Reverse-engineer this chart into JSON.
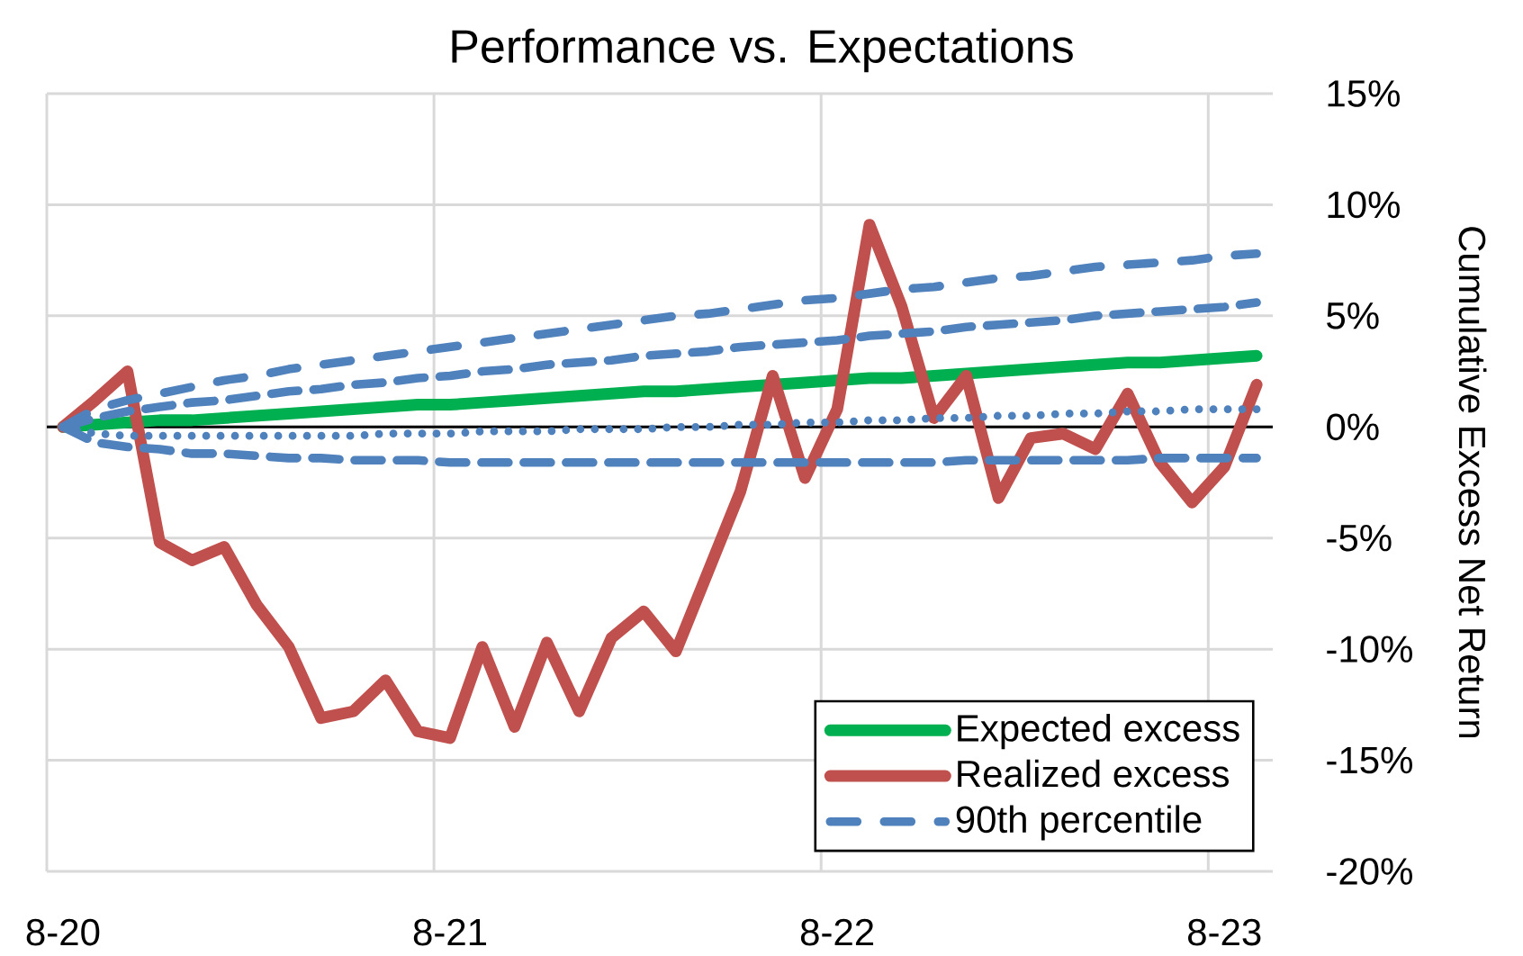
{
  "chart_data": {
    "type": "line",
    "title": "Performance vs. Expectations",
    "ylabel": "Cumulative Excess Net Return",
    "categories": [
      "8-20",
      null,
      null,
      null,
      null,
      null,
      null,
      null,
      null,
      null,
      null,
      null,
      "8-21",
      null,
      null,
      null,
      null,
      null,
      null,
      null,
      null,
      null,
      null,
      null,
      "8-22",
      null,
      null,
      null,
      null,
      null,
      null,
      null,
      null,
      null,
      null,
      null,
      "8-23",
      null
    ],
    "series": [
      {
        "name": "Expected excess",
        "color": "#00b050",
        "line_style": "solid",
        "values": [
          0,
          0.1,
          0.2,
          0.3,
          0.3,
          0.4,
          0.5,
          0.6,
          0.7,
          0.8,
          0.9,
          1.0,
          1.0,
          1.1,
          1.2,
          1.3,
          1.4,
          1.5,
          1.6,
          1.6,
          1.7,
          1.8,
          1.9,
          2.0,
          2.1,
          2.2,
          2.2,
          2.3,
          2.4,
          2.5,
          2.6,
          2.7,
          2.8,
          2.9,
          2.9,
          3.0,
          3.1,
          3.2
        ]
      },
      {
        "name": "Realized excess",
        "color": "#c0504d",
        "line_style": "solid",
        "values": [
          0,
          1.2,
          2.5,
          -5.2,
          -6.0,
          -5.4,
          -8.0,
          -9.9,
          -13.1,
          -12.8,
          -11.4,
          -13.7,
          -14.0,
          -9.9,
          -13.5,
          -9.7,
          -12.8,
          -9.5,
          -8.3,
          -10.1,
          -6.5,
          -2.9,
          2.3,
          -2.3,
          0.8,
          9.1,
          5.4,
          0.4,
          2.3,
          -3.2,
          -0.5,
          -0.3,
          -1.0,
          1.5,
          -1.6,
          -3.4,
          -1.8,
          1.9
        ]
      },
      {
        "name": "90th percentile",
        "color": "#4f81bd",
        "line_style": "dashdot",
        "values": [
          0,
          0.8,
          1.2,
          1.5,
          1.8,
          2.1,
          2.3,
          2.6,
          2.8,
          3.0,
          3.2,
          3.4,
          3.6,
          3.8,
          4.0,
          4.2,
          4.4,
          4.6,
          4.8,
          5.0,
          5.1,
          5.3,
          5.5,
          5.7,
          5.8,
          6.0,
          6.2,
          6.3,
          6.5,
          6.7,
          6.8,
          7.0,
          7.2,
          7.3,
          7.4,
          7.5,
          7.7,
          7.8
        ]
      },
      {
        "color": "#4f81bd",
        "line_style": "dashed",
        "values": [
          0,
          0.4,
          0.7,
          0.9,
          1.1,
          1.2,
          1.4,
          1.6,
          1.7,
          1.9,
          2.0,
          2.2,
          2.3,
          2.5,
          2.6,
          2.8,
          2.9,
          3.0,
          3.2,
          3.3,
          3.4,
          3.6,
          3.7,
          3.8,
          3.9,
          4.1,
          4.2,
          4.3,
          4.5,
          4.6,
          4.7,
          4.8,
          5.0,
          5.1,
          5.2,
          5.3,
          5.4,
          5.6
        ]
      },
      {
        "color": "#4f81bd",
        "line_style": "dotted",
        "values": [
          0,
          -0.3,
          -0.4,
          -0.4,
          -0.4,
          -0.4,
          -0.4,
          -0.4,
          -0.4,
          -0.4,
          -0.3,
          -0.3,
          -0.3,
          -0.2,
          -0.2,
          -0.2,
          -0.1,
          -0.1,
          -0.1,
          0.0,
          0.0,
          0.1,
          0.1,
          0.2,
          0.2,
          0.3,
          0.3,
          0.4,
          0.4,
          0.5,
          0.5,
          0.6,
          0.6,
          0.7,
          0.7,
          0.8,
          0.8,
          0.8
        ]
      },
      {
        "color": "#4f81bd",
        "line_style": "dashed",
        "values": [
          0,
          -0.7,
          -0.9,
          -1.0,
          -1.2,
          -1.2,
          -1.3,
          -1.4,
          -1.4,
          -1.5,
          -1.5,
          -1.5,
          -1.6,
          -1.6,
          -1.6,
          -1.6,
          -1.6,
          -1.6,
          -1.6,
          -1.6,
          -1.6,
          -1.6,
          -1.6,
          -1.6,
          -1.6,
          -1.6,
          -1.6,
          -1.6,
          -1.5,
          -1.5,
          -1.5,
          -1.5,
          -1.5,
          -1.5,
          -1.4,
          -1.4,
          -1.4,
          -1.4
        ]
      }
    ],
    "ylim": [
      -20,
      15
    ],
    "yticks": [
      {
        "value": -20,
        "label": "-20%"
      },
      {
        "value": -15,
        "label": "-15%"
      },
      {
        "value": -10,
        "label": "-10%"
      },
      {
        "value": -5,
        "label": "-5%"
      },
      {
        "value": 0,
        "label": "0%"
      },
      {
        "value": 5,
        "label": "5%"
      },
      {
        "value": 10,
        "label": "10%"
      },
      {
        "value": 15,
        "label": "15%"
      }
    ],
    "ref_lines": [
      {
        "axis": "y",
        "value": 0,
        "color": "#000000"
      }
    ],
    "grid": true,
    "legend": "bottom right"
  }
}
